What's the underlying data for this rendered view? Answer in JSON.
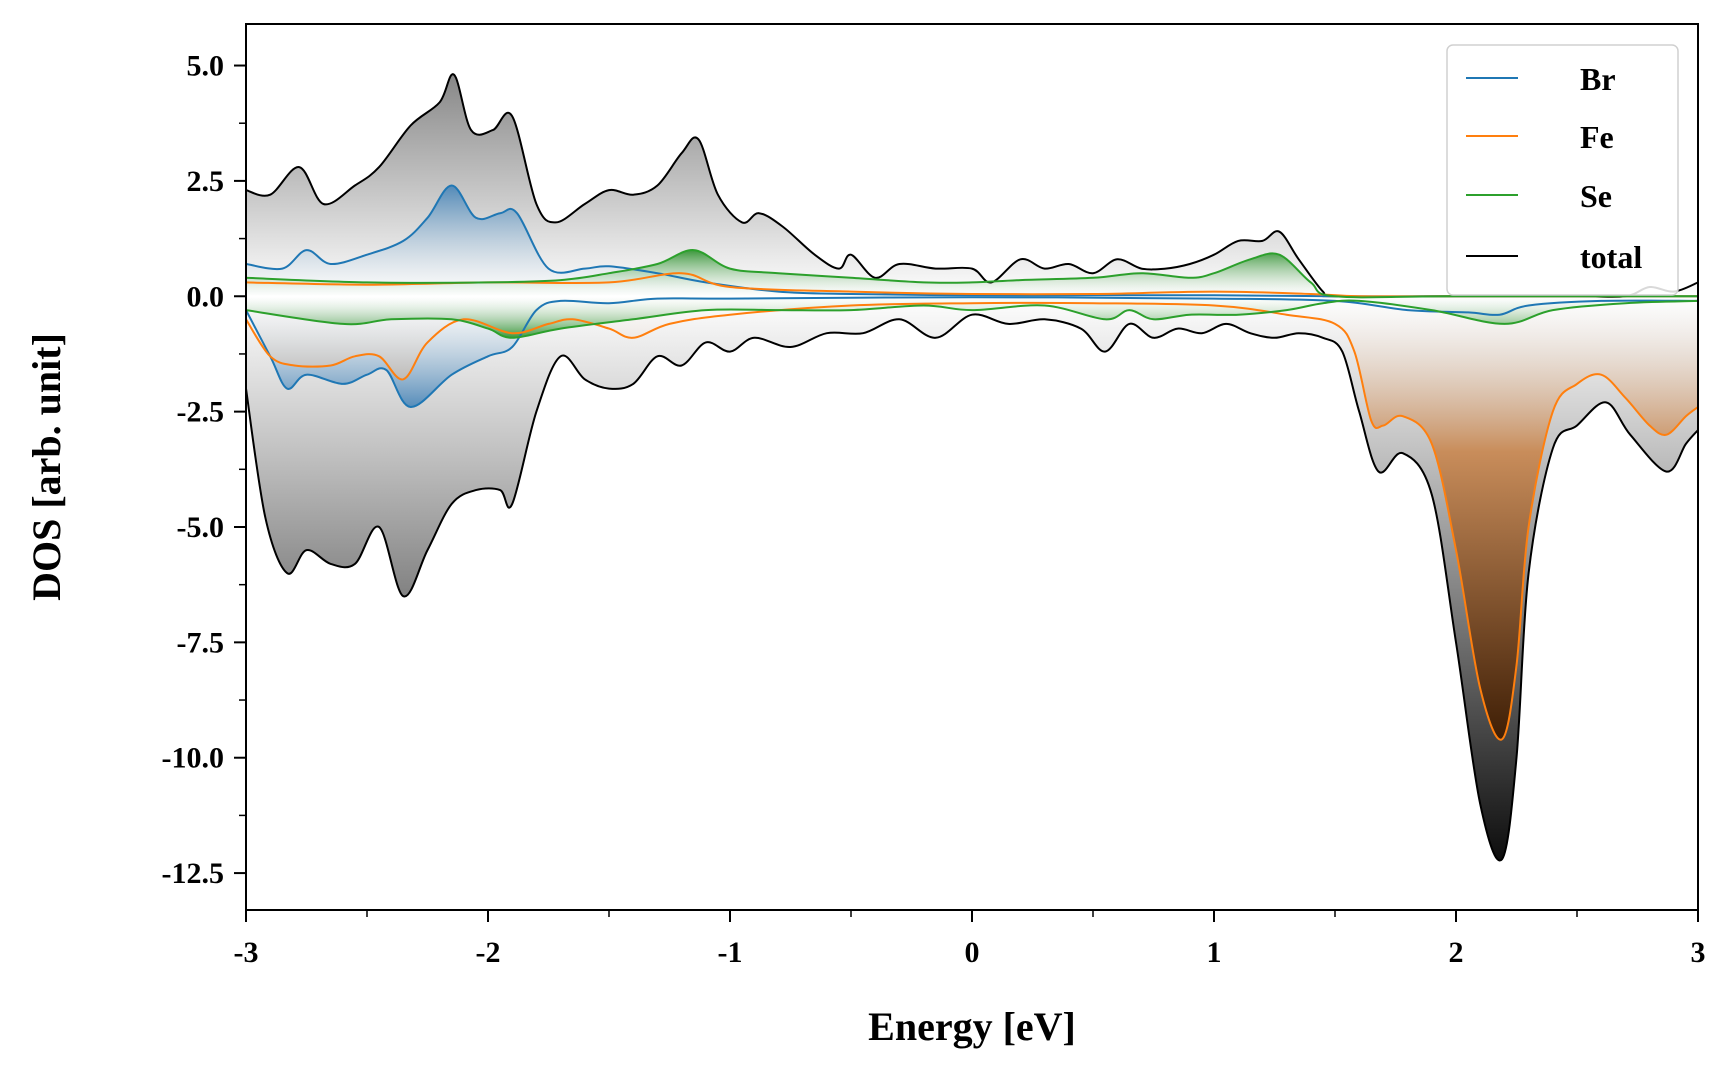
{
  "chart_data": {
    "type": "line",
    "title": "",
    "xlabel": "Energy [eV]",
    "ylabel": "DOS [arb. unit]",
    "xlim": [
      -3,
      3
    ],
    "ylim": [
      -13.3,
      5.9
    ],
    "grid": false,
    "legend_position": "top-right",
    "x_ticks": [
      -3,
      -2,
      -1,
      0,
      1,
      2,
      3
    ],
    "x_tick_labels": [
      "-3",
      "-2",
      "-1",
      "0",
      "1",
      "2",
      "3"
    ],
    "y_ticks": [
      5.0,
      2.5,
      0.0,
      -2.5,
      -5.0,
      -7.5,
      -10.0,
      -12.5
    ],
    "y_tick_labels": [
      "5.0",
      "2.5",
      "0.0",
      "-2.5",
      "-5.0",
      "-7.5",
      "-10.0",
      "-12.5"
    ],
    "series": [
      {
        "name": "Br",
        "color": "#1f77b4",
        "up": [
          [
            -3,
            0.7
          ],
          [
            -2.85,
            0.6
          ],
          [
            -2.75,
            1.0
          ],
          [
            -2.65,
            0.7
          ],
          [
            -2.5,
            0.9
          ],
          [
            -2.35,
            1.2
          ],
          [
            -2.25,
            1.7
          ],
          [
            -2.15,
            2.4
          ],
          [
            -2.05,
            1.7
          ],
          [
            -1.95,
            1.8
          ],
          [
            -1.88,
            1.8
          ],
          [
            -1.75,
            0.6
          ],
          [
            -1.6,
            0.6
          ],
          [
            -1.5,
            0.65
          ],
          [
            -1.3,
            0.5
          ],
          [
            -1.1,
            0.3
          ],
          [
            -0.8,
            0.1
          ],
          [
            -0.5,
            0.05
          ],
          [
            0,
            0.02
          ],
          [
            0.5,
            0.02
          ],
          [
            1,
            0.02
          ],
          [
            1.5,
            0.0
          ],
          [
            2,
            0.0
          ],
          [
            2.5,
            0.0
          ],
          [
            3,
            0.0
          ]
        ],
        "down": [
          [
            -3,
            -0.3
          ],
          [
            -2.9,
            -1.3
          ],
          [
            -2.83,
            -2.0
          ],
          [
            -2.75,
            -1.7
          ],
          [
            -2.6,
            -1.9
          ],
          [
            -2.5,
            -1.7
          ],
          [
            -2.42,
            -1.6
          ],
          [
            -2.32,
            -2.4
          ],
          [
            -2.15,
            -1.7
          ],
          [
            -2.0,
            -1.3
          ],
          [
            -1.9,
            -1.1
          ],
          [
            -1.8,
            -0.3
          ],
          [
            -1.7,
            -0.1
          ],
          [
            -1.5,
            -0.15
          ],
          [
            -1.3,
            -0.05
          ],
          [
            -1,
            -0.05
          ],
          [
            0,
            -0.02
          ],
          [
            1,
            -0.05
          ],
          [
            1.5,
            -0.1
          ],
          [
            1.8,
            -0.3
          ],
          [
            2.05,
            -0.35
          ],
          [
            2.18,
            -0.4
          ],
          [
            2.3,
            -0.2
          ],
          [
            2.6,
            -0.1
          ],
          [
            3,
            -0.1
          ]
        ]
      },
      {
        "name": "Fe",
        "color": "#ff7f0e",
        "up": [
          [
            -3,
            0.3
          ],
          [
            -2.5,
            0.25
          ],
          [
            -2,
            0.3
          ],
          [
            -1.5,
            0.3
          ],
          [
            -1.2,
            0.5
          ],
          [
            -1.0,
            0.2
          ],
          [
            -0.5,
            0.1
          ],
          [
            0,
            0.05
          ],
          [
            0.5,
            0.05
          ],
          [
            1,
            0.1
          ],
          [
            1.4,
            0.05
          ],
          [
            1.6,
            0.0
          ],
          [
            2,
            0.0
          ],
          [
            3,
            0.0
          ]
        ],
        "down": [
          [
            -3,
            -0.5
          ],
          [
            -2.9,
            -1.3
          ],
          [
            -2.8,
            -1.5
          ],
          [
            -2.65,
            -1.5
          ],
          [
            -2.55,
            -1.3
          ],
          [
            -2.45,
            -1.3
          ],
          [
            -2.35,
            -1.8
          ],
          [
            -2.25,
            -1.0
          ],
          [
            -2.1,
            -0.5
          ],
          [
            -1.9,
            -0.8
          ],
          [
            -1.75,
            -0.6
          ],
          [
            -1.65,
            -0.5
          ],
          [
            -1.5,
            -0.7
          ],
          [
            -1.4,
            -0.9
          ],
          [
            -1.25,
            -0.6
          ],
          [
            -1.0,
            -0.4
          ],
          [
            -0.5,
            -0.2
          ],
          [
            0,
            -0.15
          ],
          [
            0.5,
            -0.15
          ],
          [
            1,
            -0.2
          ],
          [
            1.3,
            -0.4
          ],
          [
            1.5,
            -0.6
          ],
          [
            1.58,
            -1.2
          ],
          [
            1.65,
            -2.7
          ],
          [
            1.7,
            -2.8
          ],
          [
            1.78,
            -2.6
          ],
          [
            1.9,
            -3.2
          ],
          [
            2.0,
            -5.5
          ],
          [
            2.1,
            -8.5
          ],
          [
            2.19,
            -9.6
          ],
          [
            2.25,
            -8.0
          ],
          [
            2.3,
            -5.0
          ],
          [
            2.4,
            -2.5
          ],
          [
            2.5,
            -1.9
          ],
          [
            2.6,
            -1.7
          ],
          [
            2.7,
            -2.2
          ],
          [
            2.8,
            -2.8
          ],
          [
            2.87,
            -3.0
          ],
          [
            2.95,
            -2.6
          ],
          [
            3,
            -2.4
          ]
        ]
      },
      {
        "name": "Se",
        "color": "#2ca02c",
        "up": [
          [
            -3,
            0.4
          ],
          [
            -2.5,
            0.3
          ],
          [
            -2,
            0.3
          ],
          [
            -1.7,
            0.35
          ],
          [
            -1.5,
            0.5
          ],
          [
            -1.3,
            0.7
          ],
          [
            -1.15,
            1.0
          ],
          [
            -1.0,
            0.6
          ],
          [
            -0.8,
            0.5
          ],
          [
            -0.5,
            0.4
          ],
          [
            -0.2,
            0.3
          ],
          [
            0,
            0.3
          ],
          [
            0.2,
            0.35
          ],
          [
            0.5,
            0.4
          ],
          [
            0.7,
            0.5
          ],
          [
            0.9,
            0.4
          ],
          [
            1.0,
            0.5
          ],
          [
            1.15,
            0.8
          ],
          [
            1.27,
            0.9
          ],
          [
            1.4,
            0.3
          ],
          [
            1.5,
            0.0
          ],
          [
            2,
            0.0
          ],
          [
            3,
            0.0
          ]
        ],
        "down": [
          [
            -3,
            -0.3
          ],
          [
            -2.6,
            -0.6
          ],
          [
            -2.4,
            -0.5
          ],
          [
            -2.15,
            -0.5
          ],
          [
            -2.0,
            -0.7
          ],
          [
            -1.9,
            -0.9
          ],
          [
            -1.7,
            -0.7
          ],
          [
            -1.4,
            -0.5
          ],
          [
            -1.1,
            -0.3
          ],
          [
            -0.8,
            -0.3
          ],
          [
            -0.5,
            -0.3
          ],
          [
            -0.2,
            -0.2
          ],
          [
            0,
            -0.3
          ],
          [
            0.3,
            -0.2
          ],
          [
            0.55,
            -0.5
          ],
          [
            0.65,
            -0.3
          ],
          [
            0.75,
            -0.5
          ],
          [
            0.9,
            -0.4
          ],
          [
            1.1,
            -0.4
          ],
          [
            1.3,
            -0.3
          ],
          [
            1.45,
            -0.15
          ],
          [
            1.6,
            -0.1
          ],
          [
            1.9,
            -0.3
          ],
          [
            2.2,
            -0.6
          ],
          [
            2.4,
            -0.3
          ],
          [
            2.7,
            -0.15
          ],
          [
            3,
            -0.1
          ]
        ]
      },
      {
        "name": "total",
        "color": "#000000",
        "up": [
          [
            -3,
            2.3
          ],
          [
            -2.9,
            2.2
          ],
          [
            -2.78,
            2.8
          ],
          [
            -2.68,
            2.0
          ],
          [
            -2.55,
            2.4
          ],
          [
            -2.45,
            2.8
          ],
          [
            -2.32,
            3.7
          ],
          [
            -2.2,
            4.2
          ],
          [
            -2.14,
            4.8
          ],
          [
            -2.07,
            3.6
          ],
          [
            -1.98,
            3.6
          ],
          [
            -1.9,
            3.9
          ],
          [
            -1.8,
            2.0
          ],
          [
            -1.72,
            1.6
          ],
          [
            -1.6,
            2.0
          ],
          [
            -1.5,
            2.3
          ],
          [
            -1.4,
            2.2
          ],
          [
            -1.3,
            2.4
          ],
          [
            -1.2,
            3.1
          ],
          [
            -1.13,
            3.4
          ],
          [
            -1.05,
            2.2
          ],
          [
            -0.95,
            1.6
          ],
          [
            -0.88,
            1.8
          ],
          [
            -0.78,
            1.5
          ],
          [
            -0.65,
            0.9
          ],
          [
            -0.55,
            0.6
          ],
          [
            -0.5,
            0.9
          ],
          [
            -0.4,
            0.4
          ],
          [
            -0.3,
            0.7
          ],
          [
            -0.15,
            0.6
          ],
          [
            0,
            0.6
          ],
          [
            0.08,
            0.3
          ],
          [
            0.2,
            0.8
          ],
          [
            0.3,
            0.6
          ],
          [
            0.4,
            0.7
          ],
          [
            0.5,
            0.5
          ],
          [
            0.6,
            0.8
          ],
          [
            0.7,
            0.6
          ],
          [
            0.8,
            0.6
          ],
          [
            0.9,
            0.7
          ],
          [
            1.0,
            0.9
          ],
          [
            1.1,
            1.2
          ],
          [
            1.2,
            1.2
          ],
          [
            1.27,
            1.4
          ],
          [
            1.35,
            0.8
          ],
          [
            1.45,
            0.1
          ],
          [
            1.5,
            0.0
          ],
          [
            2,
            0.0
          ],
          [
            2.5,
            0.0
          ],
          [
            2.7,
            0.0
          ],
          [
            2.8,
            0.2
          ],
          [
            2.9,
            0.1
          ],
          [
            3,
            0.3
          ]
        ],
        "down": [
          [
            -3,
            -2.0
          ],
          [
            -2.92,
            -4.8
          ],
          [
            -2.83,
            -6.0
          ],
          [
            -2.75,
            -5.5
          ],
          [
            -2.65,
            -5.8
          ],
          [
            -2.55,
            -5.8
          ],
          [
            -2.45,
            -5.0
          ],
          [
            -2.35,
            -6.5
          ],
          [
            -2.25,
            -5.5
          ],
          [
            -2.15,
            -4.5
          ],
          [
            -2.05,
            -4.2
          ],
          [
            -1.95,
            -4.2
          ],
          [
            -1.9,
            -4.5
          ],
          [
            -1.8,
            -2.5
          ],
          [
            -1.7,
            -1.3
          ],
          [
            -1.6,
            -1.8
          ],
          [
            -1.5,
            -2.0
          ],
          [
            -1.4,
            -1.9
          ],
          [
            -1.3,
            -1.3
          ],
          [
            -1.2,
            -1.5
          ],
          [
            -1.1,
            -1.0
          ],
          [
            -1.0,
            -1.2
          ],
          [
            -0.9,
            -0.9
          ],
          [
            -0.75,
            -1.1
          ],
          [
            -0.6,
            -0.8
          ],
          [
            -0.45,
            -0.8
          ],
          [
            -0.3,
            -0.5
          ],
          [
            -0.15,
            -0.9
          ],
          [
            0,
            -0.4
          ],
          [
            0.15,
            -0.6
          ],
          [
            0.3,
            -0.5
          ],
          [
            0.45,
            -0.7
          ],
          [
            0.55,
            -1.2
          ],
          [
            0.65,
            -0.6
          ],
          [
            0.75,
            -0.9
          ],
          [
            0.85,
            -0.7
          ],
          [
            0.95,
            -0.8
          ],
          [
            1.05,
            -0.6
          ],
          [
            1.15,
            -0.8
          ],
          [
            1.25,
            -0.9
          ],
          [
            1.35,
            -0.8
          ],
          [
            1.45,
            -0.9
          ],
          [
            1.53,
            -1.2
          ],
          [
            1.6,
            -2.5
          ],
          [
            1.68,
            -3.8
          ],
          [
            1.78,
            -3.4
          ],
          [
            1.9,
            -4.3
          ],
          [
            2.0,
            -7.5
          ],
          [
            2.1,
            -11.0
          ],
          [
            2.19,
            -12.2
          ],
          [
            2.25,
            -10.0
          ],
          [
            2.3,
            -6.0
          ],
          [
            2.4,
            -3.3
          ],
          [
            2.5,
            -2.8
          ],
          [
            2.62,
            -2.3
          ],
          [
            2.72,
            -3.0
          ],
          [
            2.87,
            -3.8
          ],
          [
            2.95,
            -3.2
          ],
          [
            3,
            -2.9
          ]
        ]
      }
    ]
  }
}
